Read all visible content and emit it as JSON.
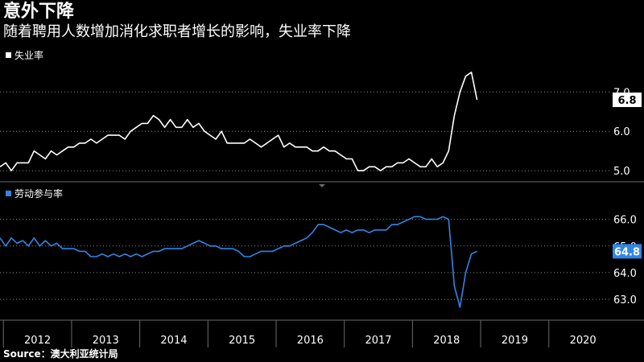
{
  "header": {
    "title": "意外下降",
    "subtitle": "随着聘用人数增加消化求职者增长的影响，失业率下降"
  },
  "source": "Source：澳大利亚统计局",
  "colors": {
    "background": "#000000",
    "unemployment_line": "#ffffff",
    "participation_line": "#2f86e6",
    "divider": "#6a6a6a",
    "grid": "#8a8a8a"
  },
  "chart_data": [
    {
      "type": "line",
      "legend": "失业率",
      "color": "#ffffff",
      "x_start": 2011.95,
      "x_step": 0.0833,
      "ylim": [
        4.8,
        7.7
      ],
      "yticks": [
        "5.0",
        "6.0",
        "7.0"
      ],
      "last_value_label": "6.8",
      "grid": true,
      "values": [
        5.1,
        5.2,
        5.0,
        5.2,
        5.2,
        5.2,
        5.5,
        5.4,
        5.3,
        5.5,
        5.4,
        5.5,
        5.6,
        5.6,
        5.7,
        5.7,
        5.8,
        5.7,
        5.8,
        5.9,
        5.9,
        5.9,
        5.8,
        6.0,
        6.1,
        6.2,
        6.2,
        6.4,
        6.3,
        6.1,
        6.3,
        6.1,
        6.1,
        6.3,
        6.1,
        6.2,
        6.0,
        5.9,
        5.8,
        6.0,
        5.7,
        5.7,
        5.7,
        5.7,
        5.8,
        5.7,
        5.6,
        5.7,
        5.8,
        5.9,
        5.6,
        5.7,
        5.6,
        5.6,
        5.6,
        5.5,
        5.5,
        5.6,
        5.5,
        5.5,
        5.4,
        5.3,
        5.3,
        5.0,
        5.0,
        5.1,
        5.1,
        5.0,
        5.1,
        5.1,
        5.2,
        5.2,
        5.3,
        5.2,
        5.1,
        5.1,
        5.3,
        5.1,
        5.2,
        5.5,
        6.4,
        7.0,
        7.4,
        7.5,
        6.8
      ]
    },
    {
      "type": "line",
      "legend": "劳动参与率",
      "color": "#2f86e6",
      "x_start": 2011.95,
      "x_step": 0.0833,
      "ylim": [
        62.4,
        66.5
      ],
      "yticks": [
        "63.0",
        "64.0",
        "65.0",
        "66.0"
      ],
      "last_value_label": "64.8",
      "grid": true,
      "values": [
        65.3,
        65.0,
        65.3,
        65.1,
        65.2,
        65.0,
        65.3,
        65.0,
        65.2,
        65.0,
        65.1,
        64.9,
        64.9,
        64.9,
        64.8,
        64.8,
        64.6,
        64.6,
        64.7,
        64.6,
        64.7,
        64.6,
        64.7,
        64.6,
        64.7,
        64.6,
        64.7,
        64.8,
        64.8,
        64.9,
        64.9,
        64.9,
        64.9,
        65.0,
        65.1,
        65.2,
        65.1,
        65.0,
        65.0,
        64.9,
        64.9,
        64.9,
        64.8,
        64.6,
        64.6,
        64.7,
        64.8,
        64.8,
        64.8,
        64.9,
        65.0,
        65.0,
        65.1,
        65.2,
        65.3,
        65.5,
        65.8,
        65.8,
        65.7,
        65.6,
        65.5,
        65.6,
        65.5,
        65.6,
        65.6,
        65.5,
        65.6,
        65.6,
        65.6,
        65.8,
        65.8,
        65.9,
        66.0,
        66.1,
        66.1,
        66.0,
        66.0,
        66.0,
        66.1,
        66.0,
        63.5,
        62.7,
        64.0,
        64.7,
        64.8
      ]
    }
  ],
  "x_axis": {
    "labels": [
      "2012",
      "2013",
      "2014",
      "2015",
      "2016",
      "2017",
      "2018",
      "2019",
      "2020"
    ],
    "boundaries": [
      2012,
      2013,
      2014,
      2015,
      2016,
      2017,
      2018,
      2019,
      2020,
      2021
    ],
    "xlim": [
      2011.95,
      2020.9
    ]
  }
}
